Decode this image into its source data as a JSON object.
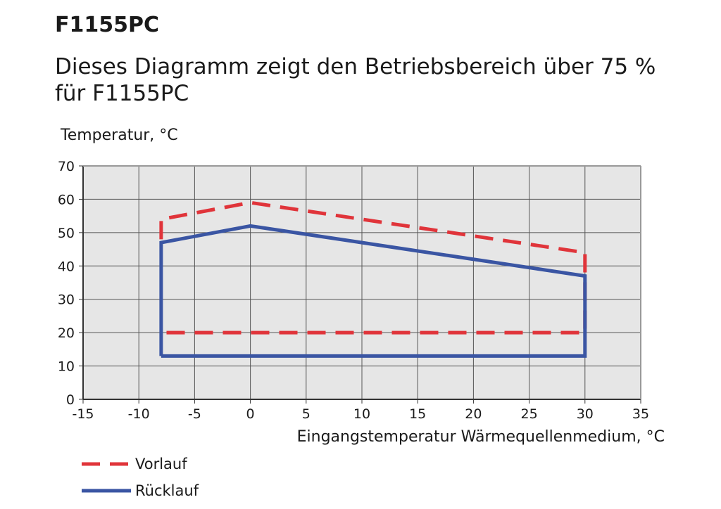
{
  "title": "F1155PC",
  "subtitle": "Dieses Diagramm zeigt den Betriebsbereich über 75 % für F1155PC",
  "chart_data": {
    "type": "line",
    "ylabel": "Temperatur, °C",
    "xlabel": "Eingangstemperatur Wärmequellenmedium, °C",
    "xlim": [
      -15,
      35
    ],
    "ylim": [
      0,
      70
    ],
    "x_ticks": [
      "-15",
      "-10",
      "-5",
      "0",
      "5",
      "10",
      "15",
      "20",
      "25",
      "30",
      "35"
    ],
    "y_ticks": [
      "0",
      "10",
      "20",
      "30",
      "40",
      "50",
      "60",
      "70"
    ],
    "grid": true,
    "legend_position": "bottom-left",
    "series": [
      {
        "name": "Vorlauf",
        "color": "#e0343a",
        "style": "dashed",
        "x": [
          -8,
          -8,
          0,
          30,
          30,
          -8
        ],
        "y": [
          48,
          54,
          59,
          44,
          20,
          20
        ]
      },
      {
        "name": "Rücklauf",
        "color": "#3a55a3",
        "style": "solid",
        "x": [
          -8,
          -8,
          0,
          30,
          30,
          -8
        ],
        "y": [
          13,
          47,
          52,
          37,
          13,
          13
        ]
      }
    ]
  }
}
